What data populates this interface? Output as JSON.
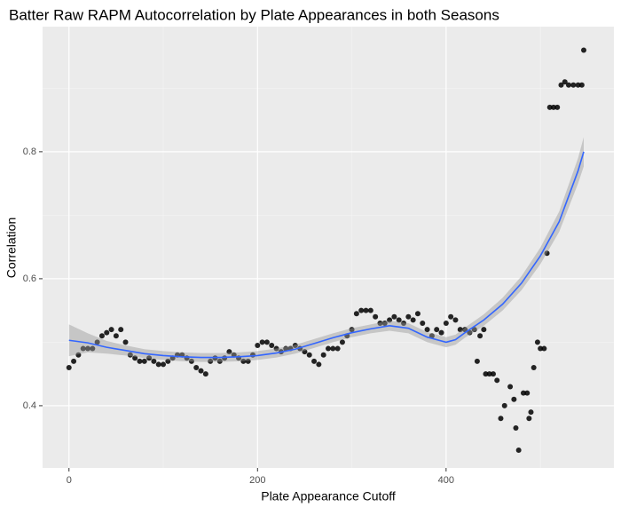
{
  "chart_data": {
    "type": "scatter",
    "title": "Batter Raw RAPM Autocorrelation by Plate Appearances in both Seasons",
    "x_label": "Plate Appearance Cutoff",
    "y_label": "Correlation",
    "xlim": [
      -28,
      578
    ],
    "ylim": [
      0.302,
      0.997
    ],
    "xticks": [
      0,
      200,
      400
    ],
    "yticks": [
      0.4,
      0.6,
      0.8
    ],
    "grid": true,
    "points": {
      "color": "#000000",
      "x": [
        0,
        5,
        10,
        15,
        20,
        25,
        30,
        35,
        40,
        45,
        50,
        55,
        60,
        65,
        70,
        75,
        80,
        85,
        90,
        95,
        100,
        105,
        110,
        115,
        120,
        125,
        130,
        135,
        140,
        145,
        150,
        155,
        160,
        165,
        170,
        175,
        180,
        185,
        190,
        195,
        200,
        205,
        210,
        215,
        220,
        225,
        230,
        235,
        240,
        245,
        250,
        255,
        260,
        265,
        270,
        275,
        280,
        285,
        290,
        295,
        300,
        305,
        310,
        315,
        320,
        325,
        330,
        335,
        340,
        345,
        350,
        355,
        360,
        365,
        370,
        375,
        380,
        385,
        390,
        395,
        400,
        405,
        410,
        415,
        420,
        425,
        430,
        433,
        436,
        440,
        442,
        446,
        450,
        454,
        458,
        462,
        468,
        472,
        474,
        477,
        482,
        486,
        488,
        490,
        493,
        497,
        500,
        504,
        507,
        510,
        514,
        518,
        522,
        526,
        530,
        535,
        540,
        544,
        546
      ],
      "y": [
        0.46,
        0.47,
        0.48,
        0.49,
        0.49,
        0.49,
        0.5,
        0.51,
        0.515,
        0.52,
        0.51,
        0.52,
        0.5,
        0.48,
        0.475,
        0.47,
        0.47,
        0.475,
        0.47,
        0.465,
        0.465,
        0.47,
        0.475,
        0.48,
        0.48,
        0.475,
        0.47,
        0.46,
        0.455,
        0.45,
        0.47,
        0.475,
        0.47,
        0.475,
        0.485,
        0.48,
        0.475,
        0.47,
        0.47,
        0.48,
        0.495,
        0.5,
        0.5,
        0.495,
        0.49,
        0.485,
        0.49,
        0.49,
        0.495,
        0.49,
        0.485,
        0.48,
        0.47,
        0.465,
        0.48,
        0.49,
        0.49,
        0.49,
        0.5,
        0.51,
        0.52,
        0.545,
        0.55,
        0.55,
        0.55,
        0.54,
        0.53,
        0.53,
        0.535,
        0.54,
        0.535,
        0.53,
        0.54,
        0.535,
        0.545,
        0.53,
        0.52,
        0.51,
        0.52,
        0.515,
        0.53,
        0.54,
        0.535,
        0.52,
        0.52,
        0.515,
        0.52,
        0.47,
        0.51,
        0.52,
        0.45,
        0.45,
        0.45,
        0.44,
        0.38,
        0.4,
        0.43,
        0.41,
        0.365,
        0.33,
        0.42,
        0.42,
        0.38,
        0.39,
        0.46,
        0.5,
        0.49,
        0.49,
        0.64,
        0.87,
        0.87,
        0.87,
        0.905,
        0.91,
        0.905,
        0.905,
        0.905,
        0.905,
        0.96
      ]
    },
    "smooth": {
      "color": "#3366ff",
      "band_color": "#999999",
      "x": [
        0,
        20,
        40,
        60,
        80,
        100,
        120,
        140,
        160,
        180,
        200,
        220,
        240,
        260,
        280,
        300,
        320,
        340,
        360,
        380,
        400,
        410,
        420,
        440,
        460,
        480,
        500,
        520,
        540,
        546
      ],
      "y": [
        0.503,
        0.499,
        0.492,
        0.487,
        0.482,
        0.479,
        0.477,
        0.476,
        0.476,
        0.477,
        0.479,
        0.483,
        0.489,
        0.498,
        0.507,
        0.515,
        0.521,
        0.526,
        0.522,
        0.508,
        0.5,
        0.504,
        0.515,
        0.535,
        0.56,
        0.593,
        0.636,
        0.69,
        0.77,
        0.8
      ],
      "lower": [
        0.478,
        0.484,
        0.482,
        0.479,
        0.475,
        0.472,
        0.47,
        0.469,
        0.469,
        0.47,
        0.472,
        0.476,
        0.482,
        0.491,
        0.5,
        0.508,
        0.514,
        0.518,
        0.514,
        0.5,
        0.492,
        0.496,
        0.507,
        0.526,
        0.55,
        0.582,
        0.623,
        0.674,
        0.75,
        0.777
      ],
      "upper": [
        0.528,
        0.514,
        0.502,
        0.495,
        0.489,
        0.486,
        0.484,
        0.483,
        0.483,
        0.484,
        0.486,
        0.49,
        0.496,
        0.505,
        0.514,
        0.522,
        0.528,
        0.534,
        0.53,
        0.516,
        0.508,
        0.512,
        0.523,
        0.544,
        0.57,
        0.604,
        0.649,
        0.706,
        0.79,
        0.823
      ]
    }
  }
}
